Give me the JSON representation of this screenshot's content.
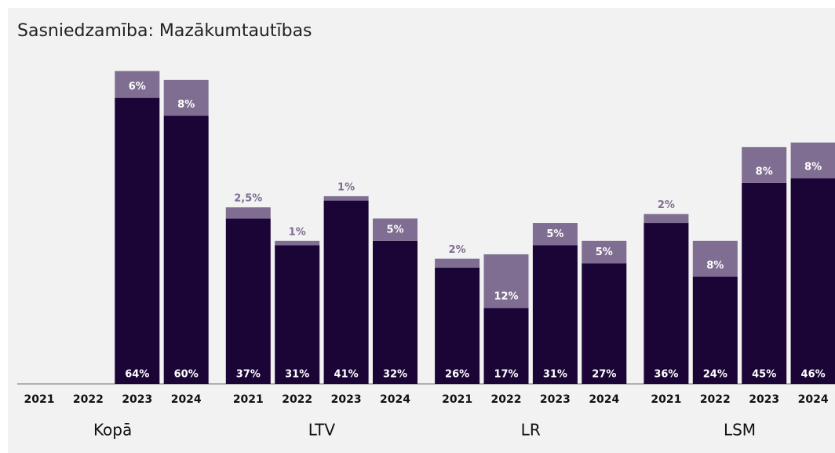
{
  "chart_data": {
    "type": "stacked-bar",
    "title": "Sasniedzamība: Mazākumtautības",
    "categories": [
      "2021",
      "2022",
      "2023",
      "2024",
      "2021",
      "2022",
      "2023",
      "2024",
      "2021",
      "2022",
      "2023",
      "2024",
      "2021",
      "2022",
      "2023",
      "2024"
    ],
    "groups": [
      "Kopā",
      "LTV",
      "LR",
      "LSM"
    ],
    "series": [
      {
        "color": "#1b0536",
        "values": [
          null,
          null,
          64,
          60,
          37,
          31,
          41,
          32,
          26,
          17,
          31,
          27,
          36,
          24,
          45,
          46
        ],
        "value_labels": [
          null,
          null,
          "64%",
          "60%",
          "37%",
          "31%",
          "41%",
          "32%",
          "26%",
          "17%",
          "31%",
          "27%",
          "36%",
          "24%",
          "45%",
          "46%"
        ]
      },
      {
        "color": "#7f6e91",
        "values": [
          null,
          null,
          6,
          8,
          2.5,
          1,
          1,
          5,
          2,
          12,
          5,
          5,
          2,
          8,
          8,
          8
        ],
        "value_labels": [
          null,
          null,
          "6%",
          "8%",
          "2,5%",
          "1%",
          "1%",
          "5%",
          "2%",
          "12%",
          "5%",
          "5%",
          "2%",
          "8%",
          "8%",
          "8%"
        ]
      }
    ],
    "ylim": [
      0,
      75
    ]
  }
}
